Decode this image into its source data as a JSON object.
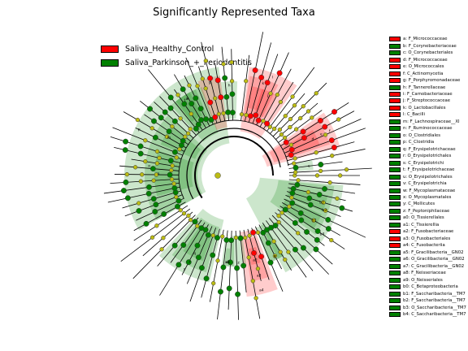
{
  "title": "Significantly Represented Taxa",
  "colors": {
    "healthy": "#ff0000",
    "parkinson": "#008000",
    "node_ns": "#bcbc14"
  },
  "groups": [
    {
      "label": "Saliva_Healthy_Control",
      "color": "#ff0000"
    },
    {
      "label": "Saliva_Parkinson_+_Periodontitis",
      "color": "#008000"
    }
  ],
  "taxa": [
    {
      "label": "a: F_Micrococcaceae",
      "group": "healthy"
    },
    {
      "label": "b: F_Corynebacteriaceae",
      "group": "parkinson"
    },
    {
      "label": "c: O_Corynebacteriales",
      "group": "parkinson"
    },
    {
      "label": "d: F_Micrococcaceae",
      "group": "healthy"
    },
    {
      "label": "e: O_Micrococcales",
      "group": "healthy"
    },
    {
      "label": "f: C_Actinomycetia",
      "group": "healthy"
    },
    {
      "label": "g: F_Porphyromonadaceae",
      "group": "healthy"
    },
    {
      "label": "h: F_Tannerellaceae",
      "group": "parkinson"
    },
    {
      "label": "i: F_Carnobacteriaceae",
      "group": "healthy"
    },
    {
      "label": "j: F_Streptococcaceae",
      "group": "healthy"
    },
    {
      "label": "k: O_Lactobacillales",
      "group": "healthy"
    },
    {
      "label": "l: C_Bacilli",
      "group": "healthy"
    },
    {
      "label": "m: F_Lachnospiraceae__XI",
      "group": "parkinson"
    },
    {
      "label": "n: F_Ruminococcaceae",
      "group": "parkinson"
    },
    {
      "label": "o: O_Clostridiales",
      "group": "parkinson"
    },
    {
      "label": "p: C_Clostridia",
      "group": "parkinson"
    },
    {
      "label": "q: F_Erysipelotrichaceae",
      "group": "parkinson"
    },
    {
      "label": "r: O_Erysipelotrichales",
      "group": "parkinson"
    },
    {
      "label": "s: C_Erysipelotrichi",
      "group": "parkinson"
    },
    {
      "label": "t: F_Erysipelotrichaceae",
      "group": "parkinson"
    },
    {
      "label": "u: O_Erysipelotrichales",
      "group": "parkinson"
    },
    {
      "label": "v: C_Erysipelotrichia",
      "group": "parkinson"
    },
    {
      "label": "w: F_Mycoplasmataceae",
      "group": "parkinson"
    },
    {
      "label": "x: O_Mycoplasmatales",
      "group": "parkinson"
    },
    {
      "label": "y: C_Mollicutes",
      "group": "parkinson"
    },
    {
      "label": "z: F_Peptoniphilaceae",
      "group": "parkinson"
    },
    {
      "label": "a0: O_Tissierellales",
      "group": "parkinson"
    },
    {
      "label": "a1: C_Tissierellia",
      "group": "parkinson"
    },
    {
      "label": "a2: F_Fusobacteriaceae",
      "group": "healthy"
    },
    {
      "label": "a3: O_Fusobacteriales",
      "group": "healthy"
    },
    {
      "label": "a4: C_Fusobacteriia",
      "group": "healthy"
    },
    {
      "label": "a5: F_Gracilibacteria__GN02",
      "group": "parkinson"
    },
    {
      "label": "a6: O_Gracilibacteria__GN02",
      "group": "parkinson"
    },
    {
      "label": "a7: C_Gracilibacteria__GN02",
      "group": "parkinson"
    },
    {
      "label": "a8: F_Neisseriaceae",
      "group": "parkinson"
    },
    {
      "label": "a9: O_Neisseriales",
      "group": "parkinson"
    },
    {
      "label": "b0: C_Betaproteobacteria",
      "group": "parkinson"
    },
    {
      "label": "b1: F_Saccharibacteria__TM7",
      "group": "parkinson"
    },
    {
      "label": "b2: F_Saccharibacteria__TM7",
      "group": "parkinson"
    },
    {
      "label": "b3: O_Saccharibacteria__TM7",
      "group": "parkinson"
    },
    {
      "label": "b4: C_Saccharibacteria__TM7",
      "group": "parkinson"
    }
  ],
  "sectors": [
    {
      "letter": "p",
      "group": "parkinson"
    },
    {
      "letter": "o",
      "group": "parkinson"
    },
    {
      "letter": "n",
      "group": "parkinson"
    },
    {
      "letter": "m",
      "group": "parkinson"
    },
    {
      "letter": "v",
      "group": "parkinson"
    },
    {
      "letter": "u",
      "group": "parkinson"
    },
    {
      "letter": "t",
      "group": "parkinson"
    },
    {
      "letter": "h",
      "group": "parkinson"
    },
    {
      "letter": "g",
      "group": "healthy"
    },
    {
      "letter": "l",
      "group": "healthy"
    },
    {
      "letter": "k",
      "group": "healthy"
    },
    {
      "letter": "j",
      "group": "healthy"
    },
    {
      "letter": "i",
      "group": "healthy"
    },
    {
      "letter": "f",
      "group": "healthy"
    },
    {
      "letter": "e",
      "group": "healthy"
    },
    {
      "letter": "d",
      "group": "healthy"
    },
    {
      "letter": "c",
      "group": "parkinson"
    },
    {
      "letter": "b4",
      "group": "parkinson"
    },
    {
      "letter": "b3",
      "group": "parkinson"
    },
    {
      "letter": "b2",
      "group": "parkinson"
    },
    {
      "letter": "b1",
      "group": "parkinson"
    },
    {
      "letter": "y",
      "group": "parkinson"
    },
    {
      "letter": "x",
      "group": "parkinson"
    },
    {
      "letter": "a4",
      "group": "healthy"
    },
    {
      "letter": "a3",
      "group": "healthy"
    },
    {
      "letter": "a2",
      "group": "healthy"
    },
    {
      "letter": "z",
      "group": "parkinson"
    },
    {
      "letter": "a1",
      "group": "parkinson"
    },
    {
      "letter": "a0",
      "group": "parkinson"
    },
    {
      "letter": "s",
      "group": "parkinson"
    },
    {
      "letter": "r",
      "group": "parkinson"
    },
    {
      "letter": "q",
      "group": "parkinson"
    }
  ]
}
